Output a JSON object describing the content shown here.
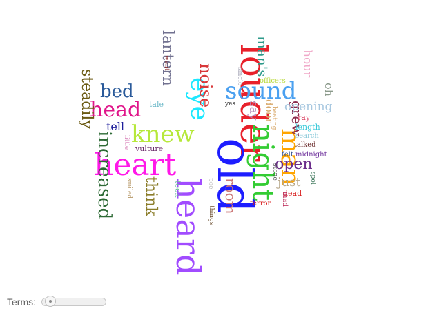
{
  "controls": {
    "terms_label": "Terms:",
    "terms_slider_value": 0.0
  },
  "words": [
    {
      "text": "louder",
      "color": "#e8202a"
    },
    {
      "text": "old",
      "color": "#1d1dff"
    },
    {
      "text": "heart",
      "color": "#ff18e8"
    },
    {
      "text": "heard",
      "color": "#a14cff"
    },
    {
      "text": "night",
      "color": "#33cc33"
    },
    {
      "text": "man",
      "color": "#ffa500"
    },
    {
      "text": "sound",
      "color": "#4aa0f0"
    },
    {
      "text": "knew",
      "color": "#b6e83a"
    },
    {
      "text": "eye",
      "color": "#1de8ff"
    },
    {
      "text": "head",
      "color": "#e0158a"
    },
    {
      "text": "increased",
      "color": "#2d6a35"
    },
    {
      "text": "steadily",
      "color": "#6b5a13"
    },
    {
      "text": "noise",
      "color": "#d8383a"
    },
    {
      "text": "bed",
      "color": "#2a5a9a"
    },
    {
      "text": "lantern",
      "color": "#717190"
    },
    {
      "text": "think",
      "color": "#8b7d2a"
    },
    {
      "text": "room",
      "color": "#cc7777"
    },
    {
      "text": "open",
      "color": "#6b2d8b"
    },
    {
      "text": "grew",
      "color": "#8b2d4d"
    },
    {
      "text": "man's",
      "color": "#2d9a8a"
    },
    {
      "text": "say",
      "color": "#b88ab8"
    },
    {
      "text": "door",
      "color": "#d8a86a"
    },
    {
      "text": "hour",
      "color": "#f0a8c8"
    },
    {
      "text": "opening",
      "color": "#a8c8e0"
    },
    {
      "text": "oh",
      "color": "#8b9a8b"
    },
    {
      "text": "just",
      "color": "#b8a88b"
    },
    {
      "text": "tell",
      "color": "#1d1d9a"
    },
    {
      "text": "tale",
      "color": "#6bb8c8"
    },
    {
      "text": "little",
      "color": "#d880b8"
    },
    {
      "text": "vulture",
      "color": "#6b2d6b"
    },
    {
      "text": "smiled",
      "color": "#b89a6b"
    },
    {
      "text": "took",
      "color": "#6bb89a"
    },
    {
      "text": "went",
      "color": "#8b2d2d"
    },
    {
      "text": "single",
      "color": "#a8a8b8"
    },
    {
      "text": "officers",
      "color": "#b8d838"
    },
    {
      "text": "yes",
      "color": "#2d2d2d"
    },
    {
      "text": "beating",
      "color": "#d8a86a"
    },
    {
      "text": "ray",
      "color": "#d8385a"
    },
    {
      "text": "length",
      "color": "#38c8d8"
    },
    {
      "text": "search",
      "color": "#88c8d8"
    },
    {
      "text": "talked",
      "color": "#6b2d2d"
    },
    {
      "text": "midnight",
      "color": "#6b2d9a"
    },
    {
      "text": "felt",
      "color": "#2d4d8b"
    },
    {
      "text": "stone",
      "color": "#4d4d4d"
    },
    {
      "text": "spol",
      "color": "#2d6b4d"
    },
    {
      "text": "dead",
      "color": "#d81d1d"
    },
    {
      "text": "mad",
      "color": "#b81d4d"
    },
    {
      "text": "terror",
      "color": "#d81d1d"
    },
    {
      "text": "poe",
      "color": "#b8b8b8"
    },
    {
      "text": "things",
      "color": "#6b4d2d"
    }
  ]
}
